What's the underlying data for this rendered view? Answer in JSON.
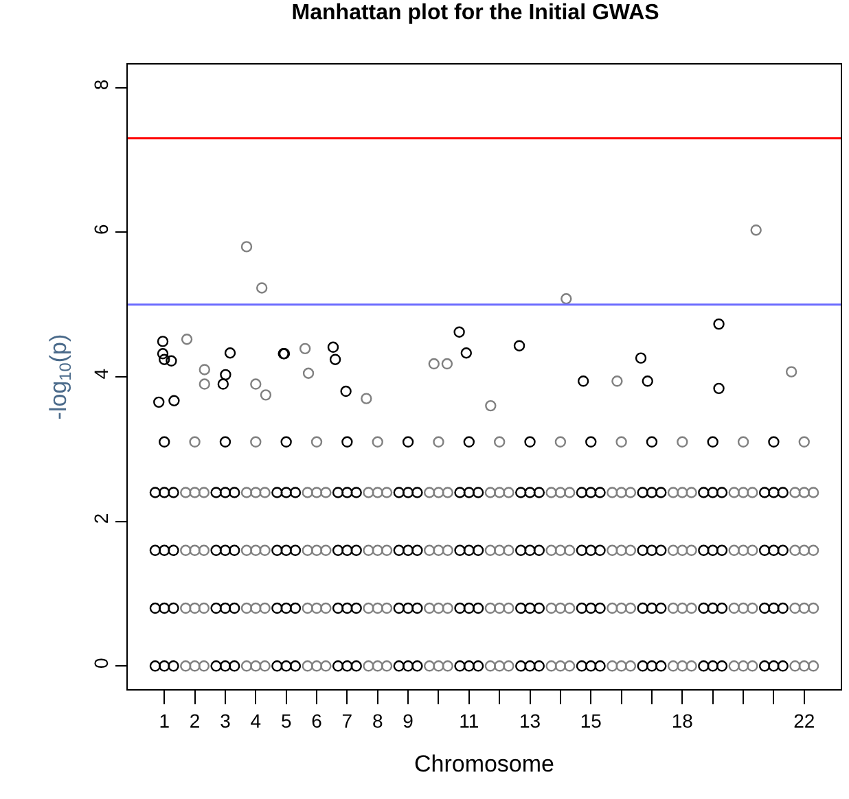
{
  "chart_data": {
    "type": "scatter",
    "title": "Manhattan plot for the Initial GWAS",
    "xlabel": "Chromosome",
    "ylabel": "-log$_{10}$(p)",
    "xlim": [
      -0.2,
      23.2
    ],
    "ylim": [
      -0.32,
      8.32
    ],
    "xticks": [
      1,
      2,
      3,
      4,
      5,
      6,
      7,
      8,
      9,
      {
        "value": 10,
        "label": null
      },
      11,
      {
        "value": 12,
        "label": null
      },
      13,
      {
        "value": 14,
        "label": null
      },
      15,
      {
        "value": 16,
        "label": null
      },
      {
        "value": 17,
        "label": null
      },
      18,
      {
        "value": 19,
        "label": null
      },
      {
        "value": 20,
        "label": null
      },
      {
        "value": 21,
        "label": null
      },
      22
    ],
    "yticks": [
      0,
      2,
      4,
      6,
      8
    ],
    "marker": "circle",
    "ref_lines": [
      {
        "axis": "y",
        "value": 7.3,
        "color": "#ff0000"
      },
      {
        "axis": "y",
        "value": 5,
        "color": "#6b6bff"
      }
    ],
    "series": [
      {
        "color": "#808080",
        "x": [
          1.7,
          1.7,
          1.7,
          1.7,
          2,
          2,
          2,
          2,
          2.3,
          2.3,
          2.3,
          2.3,
          2,
          3.7,
          3.7,
          3.7,
          3.7,
          4,
          4,
          4,
          4,
          4.3,
          4.3,
          4.3,
          4.3,
          4,
          5.7,
          5.7,
          5.7,
          5.7,
          6,
          6,
          6,
          6,
          6.3,
          6.3,
          6.3,
          6.3,
          6,
          7.7,
          7.7,
          7.7,
          7.7,
          8,
          8,
          8,
          8,
          8.3,
          8.3,
          8.3,
          8.3,
          8,
          9.7,
          9.7,
          9.7,
          9.7,
          10,
          10,
          10,
          10,
          10.3,
          10.3,
          10.3,
          10.3,
          10,
          11.7,
          11.7,
          11.7,
          11.7,
          12,
          12,
          12,
          12,
          12.3,
          12.3,
          12.3,
          12.3,
          12,
          13.7,
          13.7,
          13.7,
          13.7,
          14,
          14,
          14,
          14,
          14.3,
          14.3,
          14.3,
          14.3,
          14,
          15.7,
          15.7,
          15.7,
          15.7,
          16,
          16,
          16,
          16,
          16.3,
          16.3,
          16.3,
          16.3,
          16,
          17.7,
          17.7,
          17.7,
          17.7,
          18,
          18,
          18,
          18,
          18.3,
          18.3,
          18.3,
          18.3,
          18,
          19.7,
          19.7,
          19.7,
          19.7,
          20,
          20,
          20,
          20,
          20.3,
          20.3,
          20.3,
          20.3,
          20,
          21.7,
          21.7,
          21.7,
          21.7,
          22,
          22,
          22,
          22,
          22.3,
          22.3,
          22.3,
          22.3,
          22,
          1.74,
          2.32,
          2.32,
          3.7,
          4.2,
          4.0,
          4.33,
          5.62,
          5.73,
          7.63,
          9.85,
          10.28,
          11.71,
          14.19,
          15.86,
          20.42,
          21.58
        ],
        "values": [
          0,
          0.8,
          1.6,
          2.4,
          0,
          0.8,
          1.6,
          2.4,
          0,
          0.8,
          1.6,
          2.4,
          3.1,
          0,
          0.8,
          1.6,
          2.4,
          0,
          0.8,
          1.6,
          2.4,
          0,
          0.8,
          1.6,
          2.4,
          3.1,
          0,
          0.8,
          1.6,
          2.4,
          0,
          0.8,
          1.6,
          2.4,
          0,
          0.8,
          1.6,
          2.4,
          3.1,
          0,
          0.8,
          1.6,
          2.4,
          0,
          0.8,
          1.6,
          2.4,
          0,
          0.8,
          1.6,
          2.4,
          3.1,
          0,
          0.8,
          1.6,
          2.4,
          0,
          0.8,
          1.6,
          2.4,
          0,
          0.8,
          1.6,
          2.4,
          3.1,
          0,
          0.8,
          1.6,
          2.4,
          0,
          0.8,
          1.6,
          2.4,
          0,
          0.8,
          1.6,
          2.4,
          3.1,
          0,
          0.8,
          1.6,
          2.4,
          0,
          0.8,
          1.6,
          2.4,
          0,
          0.8,
          1.6,
          2.4,
          3.1,
          0,
          0.8,
          1.6,
          2.4,
          0,
          0.8,
          1.6,
          2.4,
          0,
          0.8,
          1.6,
          2.4,
          3.1,
          0,
          0.8,
          1.6,
          2.4,
          0,
          0.8,
          1.6,
          2.4,
          0,
          0.8,
          1.6,
          2.4,
          3.1,
          0,
          0.8,
          1.6,
          2.4,
          0,
          0.8,
          1.6,
          2.4,
          0,
          0.8,
          1.6,
          2.4,
          3.1,
          0,
          0.8,
          1.6,
          2.4,
          0,
          0.8,
          1.6,
          2.4,
          0,
          0.8,
          1.6,
          2.4,
          3.1,
          4.52,
          4.1,
          3.9,
          5.8,
          5.23,
          3.9,
          3.75,
          4.39,
          4.05,
          3.7,
          4.18,
          4.18,
          3.6,
          5.08,
          3.94,
          6.03,
          4.07
        ]
      },
      {
        "color": "#000000",
        "x": [
          0.7,
          0.7,
          0.7,
          0.7,
          1,
          1,
          1,
          1,
          1.3,
          1.3,
          1.3,
          1.3,
          1,
          2.7,
          2.7,
          2.7,
          2.7,
          3,
          3,
          3,
          3,
          3.3,
          3.3,
          3.3,
          3.3,
          3,
          4.7,
          4.7,
          4.7,
          4.7,
          5,
          5,
          5,
          5,
          5.3,
          5.3,
          5.3,
          5.3,
          5,
          6.7,
          6.7,
          6.7,
          6.7,
          7,
          7,
          7,
          7,
          7.3,
          7.3,
          7.3,
          7.3,
          7,
          8.7,
          8.7,
          8.7,
          8.7,
          9,
          9,
          9,
          9,
          9.3,
          9.3,
          9.3,
          9.3,
          9,
          10.7,
          10.7,
          10.7,
          10.7,
          11,
          11,
          11,
          11,
          11.3,
          11.3,
          11.3,
          11.3,
          11,
          12.7,
          12.7,
          12.7,
          12.7,
          13,
          13,
          13,
          13,
          13.3,
          13.3,
          13.3,
          13.3,
          13,
          14.7,
          14.7,
          14.7,
          14.7,
          15,
          15,
          15,
          15,
          15.3,
          15.3,
          15.3,
          15.3,
          15,
          16.7,
          16.7,
          16.7,
          16.7,
          17,
          17,
          17,
          17,
          17.3,
          17.3,
          17.3,
          17.3,
          17,
          18.7,
          18.7,
          18.7,
          18.7,
          19,
          19,
          19,
          19,
          19.3,
          19.3,
          19.3,
          19.3,
          19,
          20.7,
          20.7,
          20.7,
          20.7,
          21,
          21,
          21,
          21,
          21.3,
          21.3,
          21.3,
          21.3,
          21,
          0.95,
          0.95,
          1.0,
          1.23,
          0.82,
          1.32,
          3.16,
          3.01,
          2.93,
          4.91,
          4.94,
          6.54,
          6.61,
          6.96,
          10.68,
          10.91,
          12.65,
          14.75,
          16.64,
          16.86,
          19.2,
          19.2
        ],
        "values": [
          0,
          0.8,
          1.6,
          2.4,
          0,
          0.8,
          1.6,
          2.4,
          0,
          0.8,
          1.6,
          2.4,
          3.1,
          0,
          0.8,
          1.6,
          2.4,
          0,
          0.8,
          1.6,
          2.4,
          0,
          0.8,
          1.6,
          2.4,
          3.1,
          0,
          0.8,
          1.6,
          2.4,
          0,
          0.8,
          1.6,
          2.4,
          0,
          0.8,
          1.6,
          2.4,
          3.1,
          0,
          0.8,
          1.6,
          2.4,
          0,
          0.8,
          1.6,
          2.4,
          0,
          0.8,
          1.6,
          2.4,
          3.1,
          0,
          0.8,
          1.6,
          2.4,
          0,
          0.8,
          1.6,
          2.4,
          0,
          0.8,
          1.6,
          2.4,
          3.1,
          0,
          0.8,
          1.6,
          2.4,
          0,
          0.8,
          1.6,
          2.4,
          0,
          0.8,
          1.6,
          2.4,
          3.1,
          0,
          0.8,
          1.6,
          2.4,
          0,
          0.8,
          1.6,
          2.4,
          0,
          0.8,
          1.6,
          2.4,
          3.1,
          0,
          0.8,
          1.6,
          2.4,
          0,
          0.8,
          1.6,
          2.4,
          0,
          0.8,
          1.6,
          2.4,
          3.1,
          0,
          0.8,
          1.6,
          2.4,
          0,
          0.8,
          1.6,
          2.4,
          0,
          0.8,
          1.6,
          2.4,
          3.1,
          0,
          0.8,
          1.6,
          2.4,
          0,
          0.8,
          1.6,
          2.4,
          0,
          0.8,
          1.6,
          2.4,
          3.1,
          0,
          0.8,
          1.6,
          2.4,
          0,
          0.8,
          1.6,
          2.4,
          0,
          0.8,
          1.6,
          2.4,
          3.1,
          4.49,
          4.32,
          4.24,
          4.22,
          3.65,
          3.67,
          4.33,
          4.03,
          3.9,
          4.32,
          4.32,
          4.41,
          4.24,
          3.8,
          4.62,
          4.33,
          4.43,
          3.94,
          4.26,
          3.94,
          4.73,
          3.84
        ]
      }
    ]
  }
}
